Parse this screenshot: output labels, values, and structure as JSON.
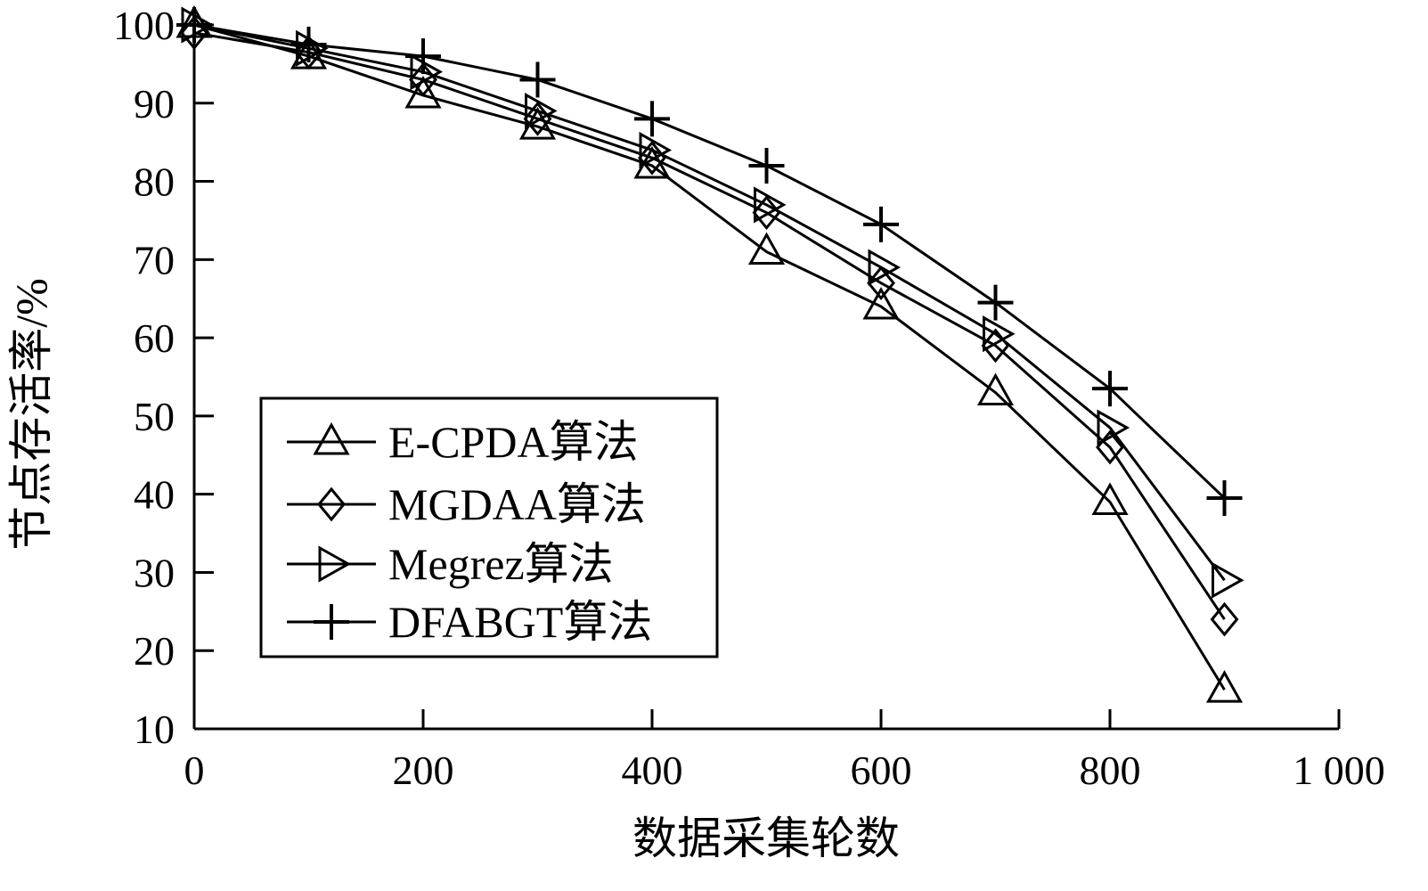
{
  "chart_data": {
    "type": "line",
    "title": "",
    "xlabel": "数据采集轮数",
    "ylabel": "节点存活率/%",
    "xlim": [
      0,
      1000
    ],
    "ylim": [
      10,
      100
    ],
    "xticks": [
      0,
      200,
      400,
      600,
      800,
      1000
    ],
    "xtick_labels": [
      "0",
      "200",
      "400",
      "600",
      "800",
      "1 000"
    ],
    "yticks": [
      10,
      20,
      30,
      40,
      50,
      60,
      70,
      80,
      90,
      100
    ],
    "ytick_labels": [
      "10",
      "20",
      "30",
      "40",
      "50",
      "60",
      "70",
      "80",
      "90",
      "100"
    ],
    "grid": false,
    "legend_position": "lower-left",
    "x": [
      0,
      100,
      200,
      300,
      400,
      500,
      600,
      700,
      800,
      900
    ],
    "series": [
      {
        "name": "E-CPDA算法",
        "marker": "triangle-up",
        "values": [
          100,
          96,
          91,
          87,
          82,
          71,
          64,
          53,
          39,
          15
        ]
      },
      {
        "name": "MGDAA算法",
        "marker": "diamond",
        "values": [
          99,
          96.5,
          93,
          88,
          83,
          76,
          67,
          59,
          46,
          24
        ]
      },
      {
        "name": "Megrez算法",
        "marker": "triangle-right",
        "values": [
          100,
          97,
          94,
          89,
          84,
          77,
          69,
          60.5,
          48.5,
          29
        ]
      },
      {
        "name": "DFABGT算法",
        "marker": "plus",
        "values": [
          100,
          97.5,
          96,
          93,
          88,
          82,
          74.5,
          64.5,
          53.5,
          39.5
        ]
      }
    ]
  }
}
